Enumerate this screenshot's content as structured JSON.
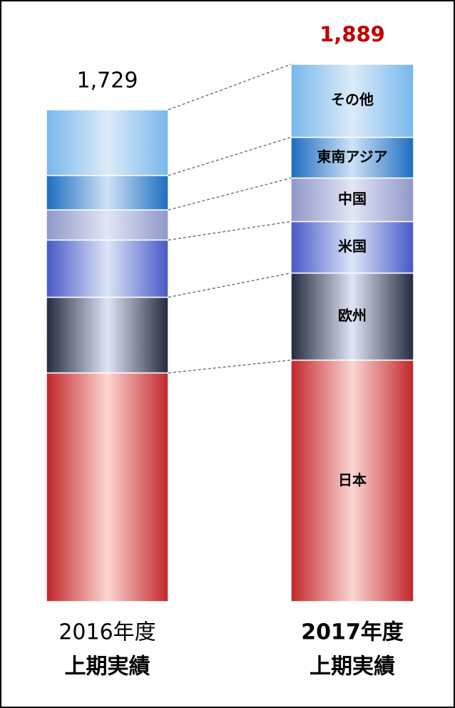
{
  "chart_data": {
    "type": "stacked-bar",
    "categories": [
      [
        "2016年度",
        "上期実績"
      ],
      [
        "2017年度",
        "上期実績"
      ]
    ],
    "totals": [
      1729,
      1889
    ],
    "total_labels": [
      "1,729",
      "1,889"
    ],
    "series": [
      {
        "name": "日本",
        "color": [
          "#c1252a",
          "#fbd6d2"
        ],
        "values": [
          804,
          849
        ]
      },
      {
        "name": "欧州",
        "color": [
          "#242a3e",
          "#dfe5f5"
        ],
        "values": [
          266,
          306
        ]
      },
      {
        "name": "米国",
        "color": [
          "#4658c6",
          "#dde5f7"
        ],
        "values": [
          201,
          181
        ]
      },
      {
        "name": "中国",
        "color": [
          "#8f97c8",
          "#e2e6f5"
        ],
        "values": [
          106,
          153
        ]
      },
      {
        "name": "東南アジア",
        "color": [
          "#1c6dc0",
          "#cfe2f6"
        ],
        "values": [
          121,
          143
        ]
      },
      {
        "name": "その他",
        "color": [
          "#78b7ec",
          "#dcebf9"
        ],
        "values": [
          231,
          257
        ]
      }
    ]
  }
}
